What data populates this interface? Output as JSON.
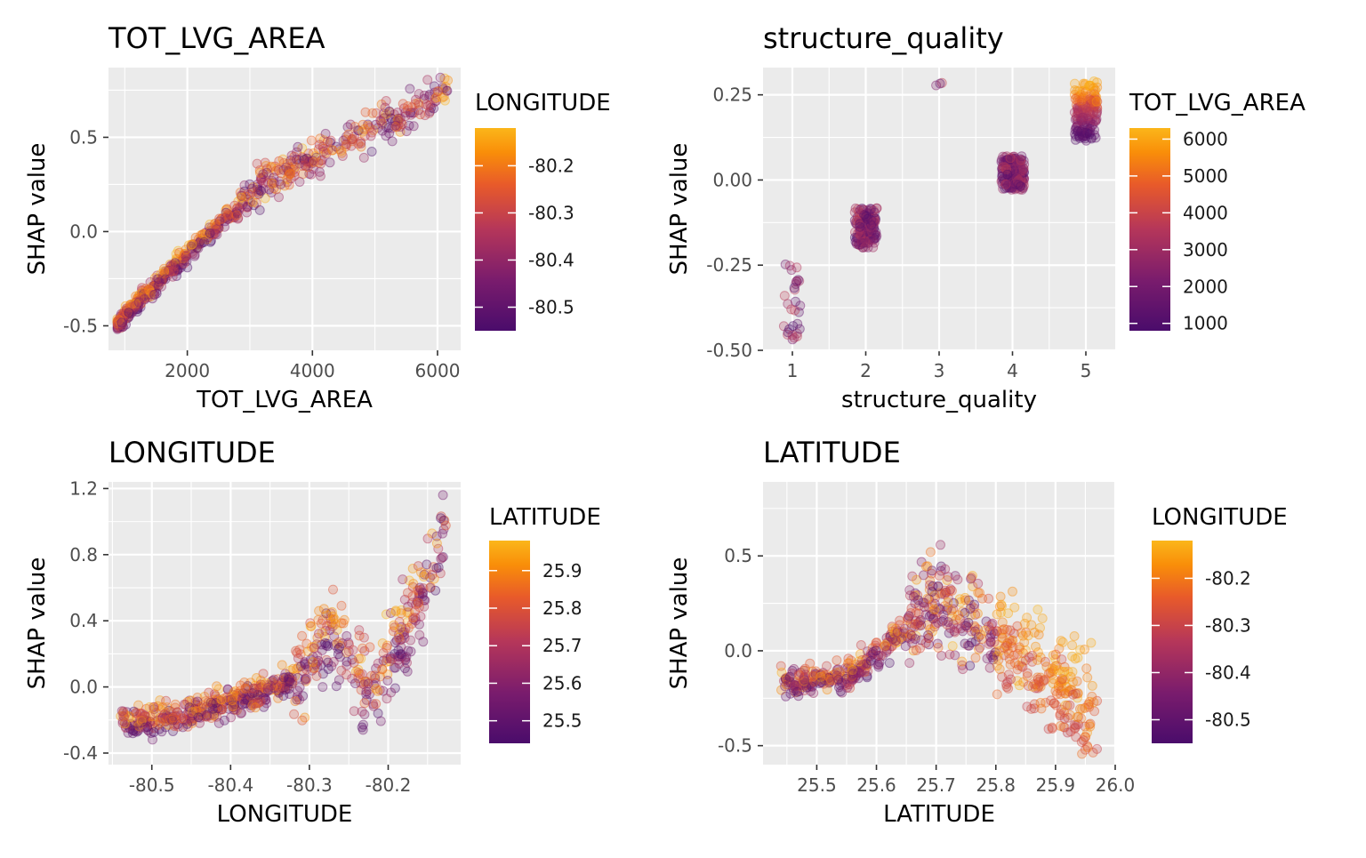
{
  "chart_data": [
    {
      "type": "scatter",
      "title": "TOT_LVG_AREA",
      "xlabel": "TOT_LVG_AREA",
      "ylabel": "SHAP value",
      "xlim": [
        740,
        6370
      ],
      "ylim": [
        -0.63,
        0.87
      ],
      "x_ticks": [
        2000,
        4000,
        6000
      ],
      "x_tick_labels": [
        "2000",
        "4000",
        "6000"
      ],
      "y_ticks": [
        -0.5,
        0.0,
        0.5
      ],
      "y_tick_labels": [
        "-0.5",
        "0.0",
        "0.5"
      ],
      "color_variable": "LONGITUDE",
      "color_range": [
        -80.55,
        -80.12
      ],
      "legend_ticks": [
        -80.2,
        -80.3,
        -80.4,
        -80.5
      ],
      "legend_tick_labels": [
        "-80.2",
        "-80.3",
        "-80.4",
        "-80.5"
      ],
      "points_sample": [
        {
          "x": 900,
          "y": -0.48
        },
        {
          "x": 1000,
          "y": -0.42
        },
        {
          "x": 1200,
          "y": -0.3
        },
        {
          "x": 1500,
          "y": -0.17
        },
        {
          "x": 1800,
          "y": -0.05
        },
        {
          "x": 2000,
          "y": 0.0
        },
        {
          "x": 2300,
          "y": 0.08
        },
        {
          "x": 2600,
          "y": 0.15
        },
        {
          "x": 3000,
          "y": 0.28
        },
        {
          "x": 3400,
          "y": 0.4
        },
        {
          "x": 3800,
          "y": 0.52
        },
        {
          "x": 4200,
          "y": 0.6
        },
        {
          "x": 4800,
          "y": 0.63
        },
        {
          "x": 5600,
          "y": 0.76
        },
        {
          "x": 6000,
          "y": 0.77
        }
      ],
      "legend_position": "right",
      "grid": true
    },
    {
      "type": "scatter",
      "title": "structure_quality",
      "xlabel": "structure_quality",
      "ylabel": "SHAP value",
      "xlim": [
        0.6,
        5.4
      ],
      "ylim": [
        -0.5,
        0.33
      ],
      "x_ticks": [
        1,
        2,
        3,
        4,
        5
      ],
      "x_tick_labels": [
        "1",
        "2",
        "3",
        "4",
        "5"
      ],
      "y_ticks": [
        -0.5,
        -0.25,
        0.0,
        0.25
      ],
      "y_tick_labels": [
        "-0.50",
        "-0.25",
        "0.00",
        "0.25"
      ],
      "color_variable": "TOT_LVG_AREA",
      "color_range": [
        800,
        6300
      ],
      "legend_ticks": [
        6000,
        5000,
        4000,
        3000,
        2000,
        1000
      ],
      "legend_tick_labels": [
        "6000",
        "5000",
        "4000",
        "3000",
        "2000",
        "1000"
      ],
      "groups": [
        {
          "x": 1,
          "y_range": [
            -0.47,
            -0.24
          ]
        },
        {
          "x": 2,
          "y_range": [
            -0.2,
            -0.08
          ]
        },
        {
          "x": 3,
          "y_range": [
            0.26,
            0.3
          ]
        },
        {
          "x": 4,
          "y_range": [
            -0.03,
            0.07
          ]
        },
        {
          "x": 5,
          "y_range": [
            0.1,
            0.29
          ]
        }
      ],
      "legend_position": "right",
      "grid": true
    },
    {
      "type": "scatter",
      "title": "LONGITUDE",
      "xlabel": "LONGITUDE",
      "ylabel": "SHAP value",
      "xlim": [
        -80.555,
        -80.108
      ],
      "ylim": [
        -0.47,
        1.24
      ],
      "x_ticks": [
        -80.5,
        -80.4,
        -80.3,
        -80.2
      ],
      "x_tick_labels": [
        "-80.5",
        "-80.4",
        "-80.3",
        "-80.2"
      ],
      "y_ticks": [
        -0.4,
        0.0,
        0.4,
        0.8,
        1.2
      ],
      "y_tick_labels": [
        "-0.4",
        "0.0",
        "0.4",
        "0.8",
        "1.2"
      ],
      "color_variable": "LATITUDE",
      "color_range": [
        25.44,
        25.98
      ],
      "legend_ticks": [
        25.9,
        25.8,
        25.7,
        25.6,
        25.5
      ],
      "legend_tick_labels": [
        "25.9",
        "25.8",
        "25.7",
        "25.6",
        "25.5"
      ],
      "points_sample": [
        {
          "x": -80.53,
          "y": -0.26
        },
        {
          "x": -80.5,
          "y": -0.2
        },
        {
          "x": -80.45,
          "y": -0.18
        },
        {
          "x": -80.4,
          "y": -0.16
        },
        {
          "x": -80.35,
          "y": -0.05
        },
        {
          "x": -80.3,
          "y": 0.2
        },
        {
          "x": -80.28,
          "y": 0.35
        },
        {
          "x": -80.25,
          "y": 0.0
        },
        {
          "x": -80.22,
          "y": -0.05
        },
        {
          "x": -80.2,
          "y": 0.15
        },
        {
          "x": -80.17,
          "y": 0.5
        },
        {
          "x": -80.15,
          "y": 0.75
        },
        {
          "x": -80.13,
          "y": 1.0
        }
      ],
      "legend_position": "right",
      "grid": true
    },
    {
      "type": "scatter",
      "title": "LATITUDE",
      "xlabel": "LATITUDE",
      "ylabel": "SHAP value",
      "xlim": [
        25.41,
        26.0
      ],
      "ylim": [
        -0.6,
        0.89
      ],
      "x_ticks": [
        25.5,
        25.6,
        25.7,
        25.8,
        25.9,
        26.0
      ],
      "x_tick_labels": [
        "25.5",
        "25.6",
        "25.7",
        "25.8",
        "25.9",
        "26.0"
      ],
      "y_ticks": [
        -0.5,
        0.0,
        0.5
      ],
      "y_tick_labels": [
        "-0.5",
        "0.0",
        "0.5"
      ],
      "color_variable": "LONGITUDE",
      "color_range": [
        -80.55,
        -80.12
      ],
      "legend_ticks": [
        -80.2,
        -80.3,
        -80.4,
        -80.5
      ],
      "legend_tick_labels": [
        "-80.2",
        "-80.3",
        "-80.4",
        "-80.5"
      ],
      "points_sample": [
        {
          "x": 25.45,
          "y": -0.18
        },
        {
          "x": 25.5,
          "y": -0.15
        },
        {
          "x": 25.55,
          "y": -0.12
        },
        {
          "x": 25.6,
          "y": -0.02
        },
        {
          "x": 25.65,
          "y": 0.12
        },
        {
          "x": 25.7,
          "y": 0.25
        },
        {
          "x": 25.72,
          "y": 0.3
        },
        {
          "x": 25.75,
          "y": 0.2
        },
        {
          "x": 25.8,
          "y": 0.05
        },
        {
          "x": 25.85,
          "y": -0.15
        },
        {
          "x": 25.9,
          "y": -0.25
        },
        {
          "x": 25.95,
          "y": -0.4
        }
      ],
      "legend_position": "right",
      "grid": true
    }
  ]
}
